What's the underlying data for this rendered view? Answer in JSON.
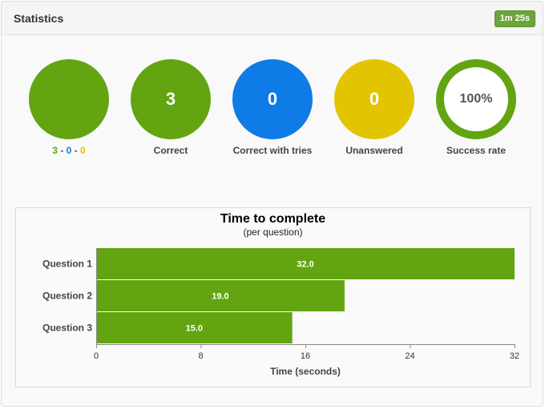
{
  "header": {
    "title": "Statistics",
    "timer": "1m 25s"
  },
  "colors": {
    "correct": "#62a511",
    "tries": "#0f7be6",
    "unanswered": "#e3c400"
  },
  "stats": [
    {
      "value": "",
      "label_parts": [
        "3",
        " - ",
        "0",
        " - ",
        "0"
      ]
    },
    {
      "value": "3",
      "label": "Correct"
    },
    {
      "value": "0",
      "label": "Correct with tries"
    },
    {
      "value": "0",
      "label": "Unanswered"
    },
    {
      "value": "100%",
      "label": "Success rate"
    }
  ],
  "chart_data": {
    "type": "bar",
    "orientation": "horizontal",
    "title": "Time to complete",
    "subtitle": "(per question)",
    "categories": [
      "Question 1",
      "Question 2",
      "Question 3"
    ],
    "values": [
      32.0,
      19.0,
      15.0
    ],
    "value_labels": [
      "32.0",
      "19.0",
      "15.0"
    ],
    "xlabel": "Time (seconds)",
    "xlim": [
      0,
      32
    ],
    "xticks": [
      "0",
      "8",
      "16",
      "24",
      "32"
    ],
    "bar_color": "#62a511",
    "grid": false
  }
}
